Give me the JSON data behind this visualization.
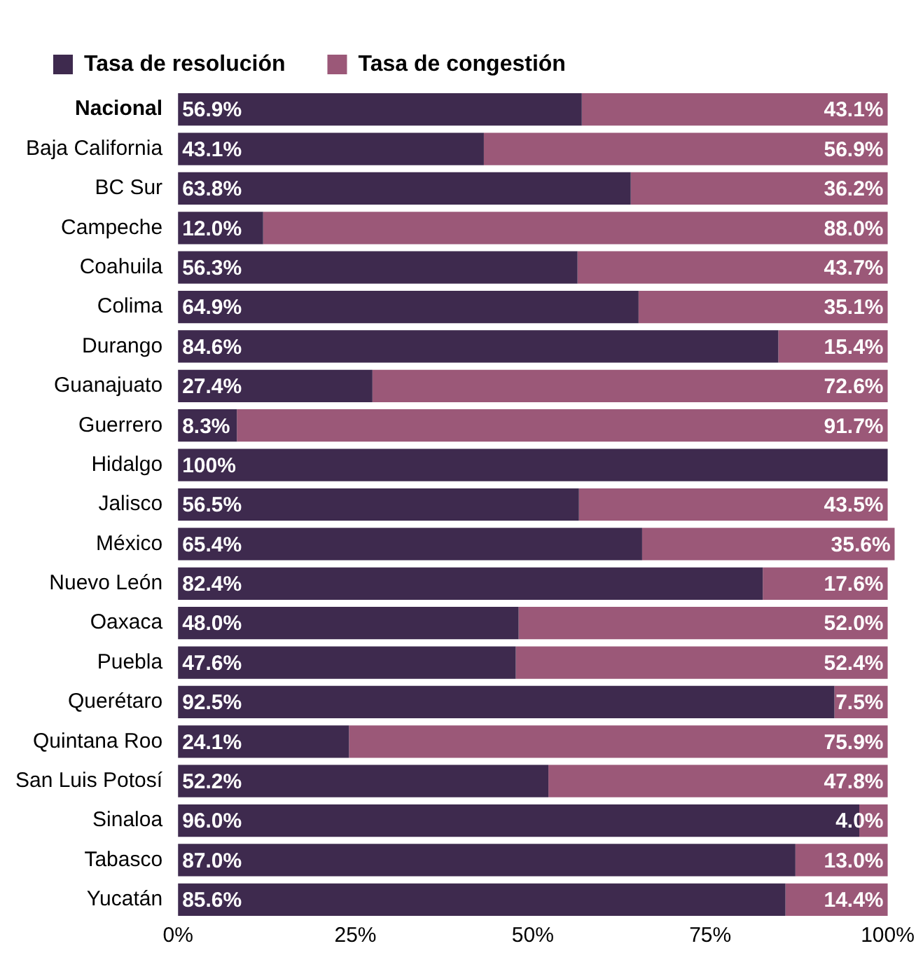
{
  "chart_data": {
    "type": "bar",
    "orientation": "horizontal",
    "stacked": true,
    "categories": [
      "Nacional",
      "Baja California",
      "BC Sur",
      "Campeche",
      "Coahuila",
      "Colima",
      "Durango",
      "Guanajuato",
      "Guerrero",
      "Hidalgo",
      "Jalisco",
      "México",
      "Nuevo León",
      "Oaxaca",
      "Puebla",
      "Querétaro",
      "Quintana Roo",
      "San Luis Potosí",
      "Sinaloa",
      "Tabasco",
      "Yucatán"
    ],
    "series": [
      {
        "name": "Tasa de resolución",
        "color": "#3e2a4e",
        "values": [
          56.9,
          43.1,
          63.8,
          12.0,
          56.3,
          64.9,
          84.6,
          27.4,
          8.3,
          100,
          56.5,
          65.4,
          82.4,
          48.0,
          47.6,
          92.5,
          24.1,
          52.2,
          96.0,
          87.0,
          85.6
        ],
        "value_labels": [
          "56.9%",
          "43.1%",
          "63.8%",
          "12.0%",
          "56.3%",
          "64.9%",
          "84.6%",
          "27.4%",
          "8.3%",
          "100%",
          "56.5%",
          "65.4%",
          "82.4%",
          "48.0%",
          "47.6%",
          "92.5%",
          "24.1%",
          "52.2%",
          "96.0%",
          "87.0%",
          "85.6%"
        ]
      },
      {
        "name": "Tasa de congestión",
        "color": "#9b5878",
        "values": [
          43.1,
          56.9,
          36.2,
          88.0,
          43.7,
          35.1,
          15.4,
          72.6,
          91.7,
          0,
          43.5,
          35.6,
          17.6,
          52.0,
          52.4,
          7.5,
          75.9,
          47.8,
          4.0,
          13.0,
          14.4
        ],
        "value_labels": [
          "43.1%",
          "56.9%",
          "36.2%",
          "88.0%",
          "43.7%",
          "35.1%",
          "15.4%",
          "72.6%",
          "91.7%",
          null,
          "43.5%",
          "35.6%",
          "17.6%",
          "52.0%",
          "52.4%",
          "7.5%",
          "75.9%",
          "47.8%",
          "4.0%",
          "13.0%",
          "14.4%"
        ]
      }
    ],
    "xlim": [
      0,
      101
    ],
    "xticks": [
      {
        "value": 0,
        "label": "0%"
      },
      {
        "value": 25,
        "label": "25%"
      },
      {
        "value": 50,
        "label": "50%"
      },
      {
        "value": 75,
        "label": "75%"
      },
      {
        "value": 100,
        "label": "100%"
      }
    ],
    "grid": false,
    "legend": "top left"
  }
}
